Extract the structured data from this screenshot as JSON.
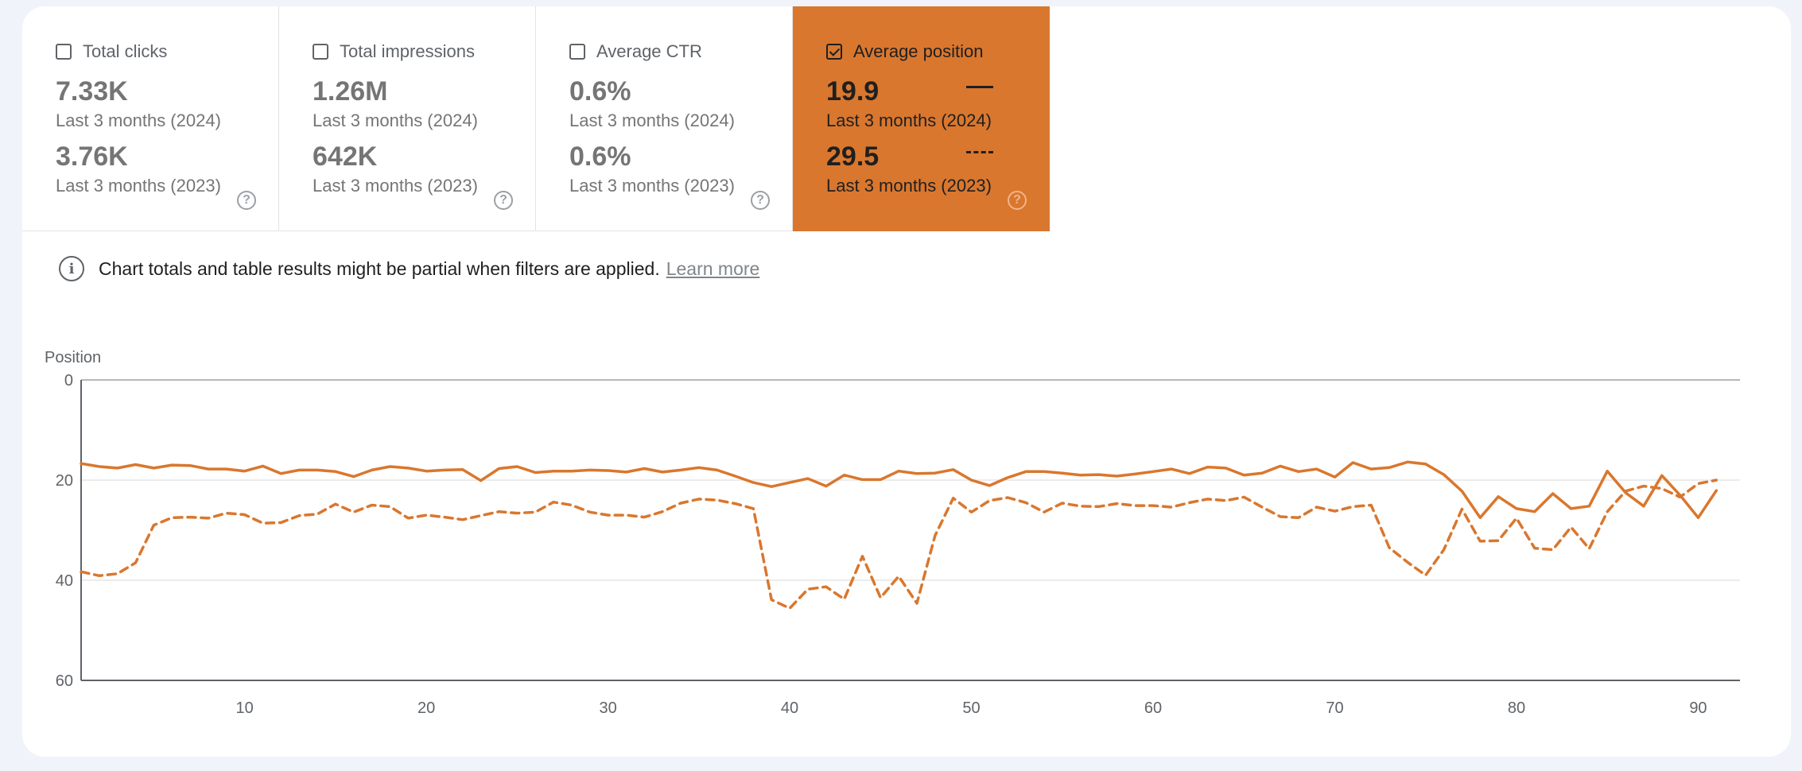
{
  "tiles": [
    {
      "label": "Total clicks",
      "checked": false,
      "value_2024": "7.33K",
      "period_2024": "Last 3 months (2024)",
      "value_2023": "3.76K",
      "period_2023": "Last 3 months (2023)"
    },
    {
      "label": "Total impressions",
      "checked": false,
      "value_2024": "1.26M",
      "period_2024": "Last 3 months (2024)",
      "value_2023": "642K",
      "period_2023": "Last 3 months (2023)"
    },
    {
      "label": "Average CTR",
      "checked": false,
      "value_2024": "0.6%",
      "period_2024": "Last 3 months (2024)",
      "value_2023": "0.6%",
      "period_2023": "Last 3 months (2023)"
    },
    {
      "label": "Average position",
      "checked": true,
      "value_2024": "19.9",
      "period_2024": "Last 3 months (2024)",
      "value_2023": "29.5",
      "period_2023": "Last 3 months (2023)"
    }
  ],
  "help_icon": "help-circle-icon",
  "notice": {
    "icon": "info-icon",
    "text": "Chart totals and table results might be partial when filters are applied.",
    "link": "Learn more"
  },
  "chart_data": {
    "type": "line",
    "ylabel": "Position",
    "y_inverted": true,
    "ylim": [
      0,
      60
    ],
    "yticks": [
      0,
      20,
      40,
      60
    ],
    "xlim": [
      1,
      92
    ],
    "xticks": [
      10,
      20,
      30,
      40,
      50,
      60,
      70,
      80,
      90
    ],
    "grid": true,
    "color": "#d9772e",
    "series": [
      {
        "style": "solid",
        "x": [
          1,
          2,
          3,
          4,
          5,
          6,
          7,
          8,
          9,
          10,
          11,
          12,
          13,
          14,
          15,
          16,
          17,
          18,
          19,
          20,
          21,
          22,
          23,
          24,
          25,
          26,
          27,
          28,
          29,
          30,
          31,
          32,
          33,
          34,
          35,
          36,
          37,
          38,
          39,
          40,
          41,
          42,
          43,
          44,
          45,
          46,
          47,
          48,
          49,
          50,
          51,
          52,
          53,
          54,
          55,
          56,
          57,
          58,
          59,
          60,
          61,
          62,
          63,
          64,
          65,
          66,
          67,
          68,
          69,
          70,
          71,
          72,
          73,
          74,
          75,
          76,
          77,
          78,
          79,
          80,
          81,
          82,
          83,
          84,
          85,
          86,
          87,
          88,
          89,
          90,
          91
        ],
        "y": [
          16.7,
          17.3,
          17.6,
          16.9,
          17.6,
          17.0,
          17.1,
          17.8,
          17.8,
          18.2,
          17.2,
          18.7,
          18.0,
          18.0,
          18.3,
          19.3,
          18.0,
          17.3,
          17.6,
          18.2,
          18.0,
          17.9,
          20.1,
          17.7,
          17.3,
          18.5,
          18.2,
          18.2,
          18.0,
          18.1,
          18.4,
          17.7,
          18.4,
          18.0,
          17.5,
          18.0,
          19.2,
          20.5,
          21.3,
          20.5,
          19.7,
          21.2,
          19.0,
          19.9,
          19.9,
          18.2,
          18.7,
          18.6,
          17.9,
          20.0,
          21.1,
          19.5,
          18.3,
          18.3,
          18.6,
          19.0,
          18.9,
          19.2,
          18.8,
          18.3,
          17.8,
          18.7,
          17.4,
          17.6,
          19.0,
          18.6,
          17.2,
          18.3,
          17.8,
          19.4,
          16.5,
          17.8,
          17.5,
          16.4,
          16.8,
          18.9,
          22.2,
          27.5,
          23.3,
          25.7,
          26.3,
          22.7,
          25.7,
          25.2,
          18.2,
          22.5,
          25.2,
          19.1,
          23.0,
          27.5,
          22.1
        ]
      },
      {
        "style": "dashed",
        "x": [
          1,
          2,
          3,
          4,
          5,
          6,
          7,
          8,
          9,
          10,
          11,
          12,
          13,
          14,
          15,
          16,
          17,
          18,
          19,
          20,
          21,
          22,
          23,
          24,
          25,
          26,
          27,
          28,
          29,
          30,
          31,
          32,
          33,
          34,
          35,
          36,
          37,
          38,
          39,
          40,
          41,
          42,
          43,
          44,
          45,
          46,
          47,
          48,
          49,
          50,
          51,
          52,
          53,
          54,
          55,
          56,
          57,
          58,
          59,
          60,
          61,
          62,
          63,
          64,
          65,
          66,
          67,
          68,
          69,
          70,
          71,
          72,
          73,
          74,
          75,
          76,
          77,
          78,
          79,
          80,
          81,
          82,
          83,
          84,
          85,
          86,
          87,
          88,
          89,
          90,
          91
        ],
        "y": [
          38.3,
          39.1,
          38.7,
          36.5,
          29.0,
          27.5,
          27.4,
          27.6,
          26.6,
          26.9,
          28.6,
          28.5,
          27.1,
          26.8,
          24.8,
          26.4,
          25.0,
          25.3,
          27.6,
          27.0,
          27.4,
          27.9,
          27.1,
          26.3,
          26.6,
          26.4,
          24.4,
          25.0,
          26.4,
          27.0,
          27.0,
          27.4,
          26.3,
          24.6,
          23.8,
          24.0,
          24.7,
          25.7,
          43.9,
          45.6,
          41.8,
          41.3,
          43.8,
          35.2,
          43.5,
          39.2,
          44.6,
          31.1,
          23.6,
          26.4,
          24.1,
          23.5,
          24.5,
          26.4,
          24.6,
          25.2,
          25.3,
          24.7,
          25.1,
          25.1,
          25.4,
          24.5,
          23.8,
          24.1,
          23.4,
          25.4,
          27.3,
          27.5,
          25.4,
          26.2,
          25.3,
          25.0,
          33.5,
          36.4,
          39.0,
          33.9,
          25.8,
          32.2,
          32.1,
          27.6,
          33.6,
          33.9,
          29.4,
          33.7,
          26.3,
          22.2,
          21.2,
          21.7,
          23.4,
          20.7,
          20.0
        ]
      }
    ]
  }
}
